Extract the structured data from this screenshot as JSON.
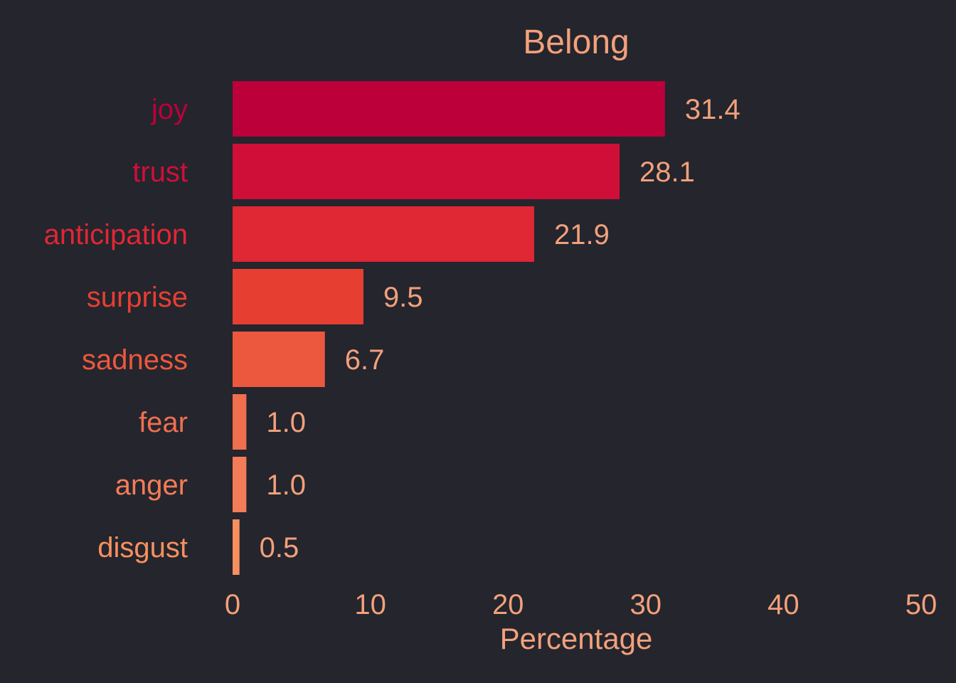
{
  "chart_data": {
    "type": "bar",
    "orientation": "horizontal",
    "title": "Belong",
    "xlabel": "Percentage",
    "ylabel": "",
    "categories": [
      "joy",
      "trust",
      "anticipation",
      "surprise",
      "sadness",
      "fear",
      "anger",
      "disgust"
    ],
    "values": [
      31.4,
      28.1,
      21.9,
      9.5,
      6.7,
      1.0,
      1.0,
      0.5
    ],
    "value_labels": [
      "31.4",
      "28.1",
      "21.9",
      "9.5",
      "6.7",
      "1.0",
      "1.0",
      "0.5"
    ],
    "xlim": [
      0,
      50
    ],
    "xticks": [
      0,
      10,
      20,
      30,
      40,
      50
    ],
    "xtick_labels": [
      "0",
      "10",
      "20",
      "30",
      "40",
      "50"
    ],
    "grid": false,
    "legend": "none",
    "bar_colors": [
      "#bb003a",
      "#cf0f38",
      "#e02734",
      "#e63f32",
      "#ec583d",
      "#f06f4f",
      "#f47c58",
      "#f7905f"
    ],
    "label_colors": [
      "#bb003a",
      "#cf0f38",
      "#e02734",
      "#e63f32",
      "#ec583d",
      "#f06f4f",
      "#f47c58",
      "#f7905f"
    ],
    "text_color": "#f2a07b",
    "background": "#24252d"
  }
}
